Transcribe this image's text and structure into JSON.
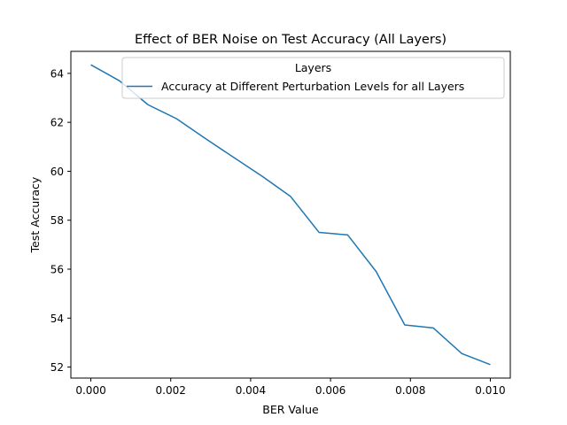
{
  "chart_data": {
    "type": "line",
    "title": "Effect of BER Noise on Test Accuracy (All Layers)",
    "xlabel": "BER Value",
    "ylabel": "Test Accuracy",
    "xlim": [
      -0.0005,
      0.0105
    ],
    "ylim": [
      51.55,
      64.9
    ],
    "xticks": [
      0.0,
      0.002,
      0.004,
      0.006,
      0.008,
      0.01
    ],
    "xtick_labels": [
      "0.000",
      "0.002",
      "0.004",
      "0.006",
      "0.008",
      "0.010"
    ],
    "yticks": [
      52,
      54,
      56,
      58,
      60,
      62,
      64
    ],
    "ytick_labels": [
      "52",
      "54",
      "56",
      "58",
      "60",
      "62",
      "64"
    ],
    "grid": false,
    "legend": {
      "title": "Layers",
      "placement": "upper-right"
    },
    "series": [
      {
        "name": "Accuracy at Different Perturbation Levels for all Layers",
        "color": "#1f77b4",
        "x": [
          0.0,
          0.000714,
          0.001429,
          0.002143,
          0.002857,
          0.003571,
          0.004286,
          0.005,
          0.005714,
          0.006429,
          0.007143,
          0.007857,
          0.008571,
          0.009286,
          0.01
        ],
        "y": [
          64.35,
          63.7,
          62.72,
          62.15,
          61.35,
          60.57,
          59.8,
          58.97,
          57.5,
          57.4,
          55.9,
          53.72,
          53.6,
          52.55,
          52.1
        ]
      }
    ]
  }
}
